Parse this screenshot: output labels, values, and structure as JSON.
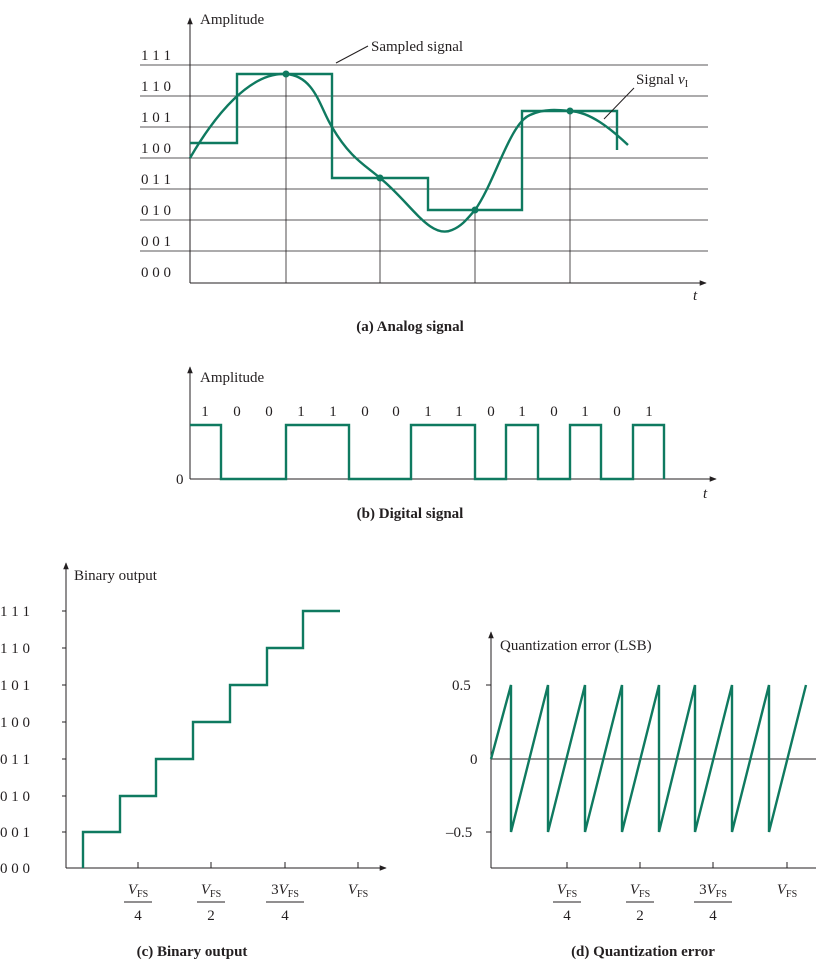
{
  "colors": {
    "signal": "#0f7a60",
    "ink": "#231f20"
  },
  "panel_a": {
    "y_axis_label": "Amplitude",
    "t_label": "t",
    "levels": [
      "0 0 0",
      "0 0 1",
      "0 1 0",
      "0 1 1",
      "1 0 0",
      "1 0 1",
      "1 1 0",
      "1 1 1"
    ],
    "sampled_label": "Sampled signal",
    "signal_label_main": "Signal ",
    "signal_label_var": "v",
    "signal_label_sub": "I",
    "caption": "(a)  Analog signal"
  },
  "panel_b": {
    "y_axis_label": "Amplitude",
    "zero_label": "0",
    "t_label": "t",
    "bits": [
      "1",
      "0",
      "0",
      "1",
      "1",
      "0",
      "0",
      "1",
      "1",
      "0",
      "1",
      "0",
      "1",
      "0",
      "1"
    ],
    "caption": "(b)  Digital signal"
  },
  "panel_c": {
    "y_axis_label": "Binary output",
    "levels": [
      "0 0 0",
      "0 0 1",
      "0 1 0",
      "0 1 1",
      "1 0 0",
      "1 0 1",
      "1 1 0",
      "1 1 1"
    ],
    "ticks": {
      "t1": {
        "num": "V",
        "num_sub": "FS",
        "den": "4"
      },
      "t2": {
        "num": "V",
        "num_sub": "FS",
        "den": "2"
      },
      "t3": {
        "num_coef": "3",
        "num": "V",
        "num_sub": "FS",
        "den": "4"
      },
      "t4": {
        "num": "V",
        "num_sub": "FS"
      }
    },
    "caption": "(c)  Binary output"
  },
  "panel_d": {
    "y_axis_label": "Quantization error (LSB)",
    "y_ticks": [
      "0.5",
      "0",
      "–0.5"
    ],
    "ticks": {
      "t1": {
        "num": "V",
        "num_sub": "FS",
        "den": "4"
      },
      "t2": {
        "num": "V",
        "num_sub": "FS",
        "den": "2"
      },
      "t3": {
        "num_coef": "3",
        "num": "V",
        "num_sub": "FS",
        "den": "4"
      },
      "t4": {
        "num": "V",
        "num_sub": "FS"
      }
    },
    "caption": "(d)  Quantization error"
  }
}
